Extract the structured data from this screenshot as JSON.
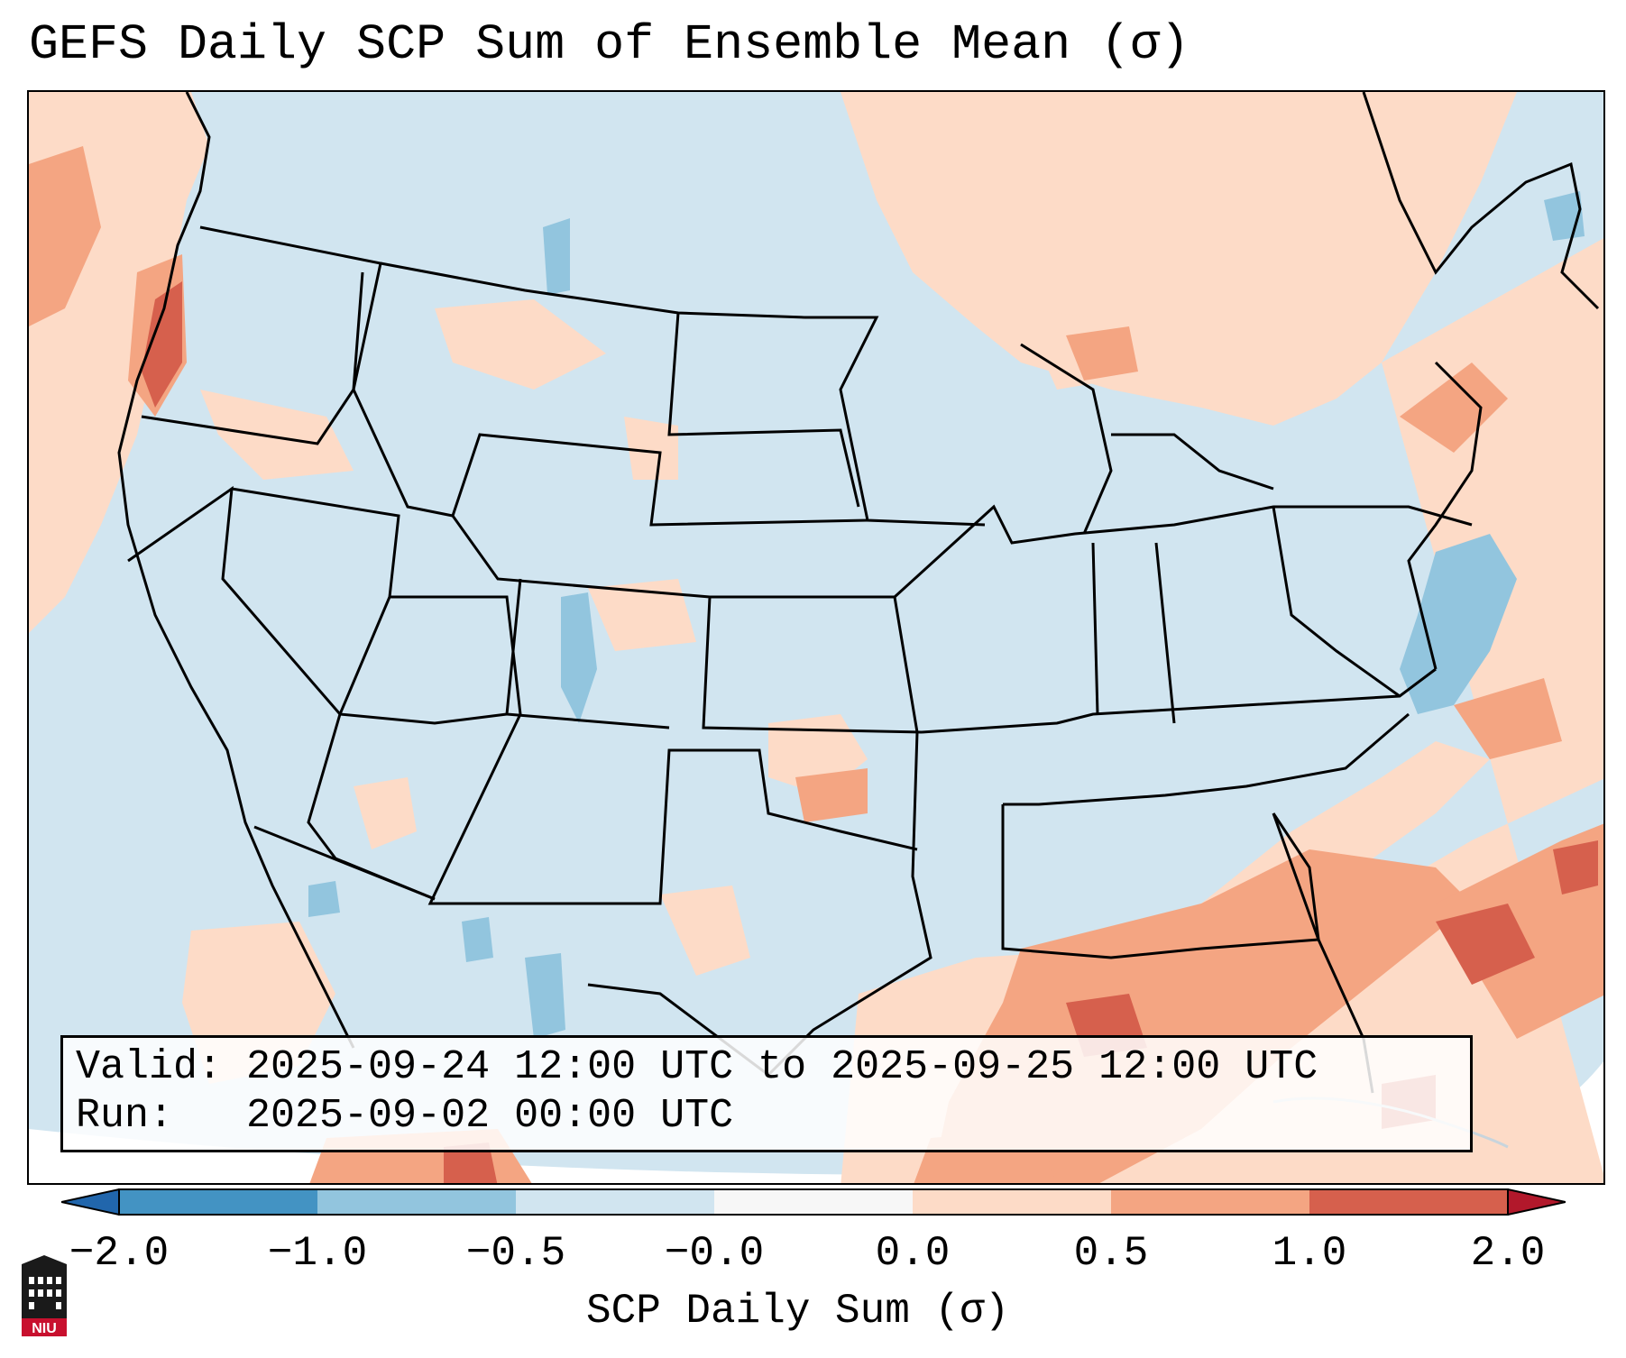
{
  "title": "GEFS Daily SCP Sum of Ensemble Mean (σ)",
  "info": {
    "valid_line": "Valid: 2025-09-24 12:00 UTC to 2025-09-25 12:00 UTC",
    "run_line": "Run:   2025-09-02 00:00 UTC"
  },
  "colorbar": {
    "label": "SCP Daily Sum (σ)",
    "ticks": [
      "−2.0",
      "−1.0",
      "−0.5",
      "−0.0",
      "0.0",
      "0.5",
      "1.0",
      "2.0"
    ],
    "bins": [
      {
        "from": -2.0,
        "to": -1.0,
        "color": "#4393c3"
      },
      {
        "from": -1.0,
        "to": -0.5,
        "color": "#92c5de"
      },
      {
        "from": -0.5,
        "to": -0.0,
        "color": "#d1e5f0"
      },
      {
        "from": -0.0,
        "to": 0.0,
        "color": "#f7f7f7"
      },
      {
        "from": 0.0,
        "to": 0.5,
        "color": "#fddbc7"
      },
      {
        "from": 0.5,
        "to": 1.0,
        "color": "#f4a582"
      },
      {
        "from": 1.0,
        "to": 2.0,
        "color": "#d6604d"
      }
    ],
    "extend_low_color": "#2166ac",
    "extend_high_color": "#b2182b"
  },
  "logo": {
    "text": "NIU"
  },
  "colors": {
    "near_zero": "#d1e5f0",
    "weak_positive": "#fddbc7",
    "moderate_positive": "#f4a582",
    "strong_positive": "#d6604d",
    "weak_negative": "#92c5de"
  }
}
